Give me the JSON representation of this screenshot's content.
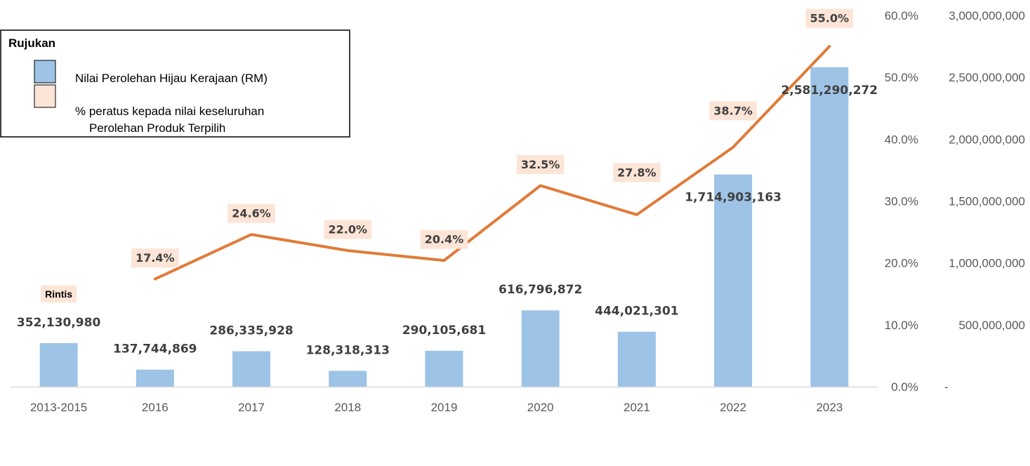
{
  "chart_data": {
    "type": "bar",
    "categories": [
      "2013-2015",
      "2016",
      "2017",
      "2018",
      "2019",
      "2020",
      "2021",
      "2022",
      "2023"
    ],
    "series": [
      {
        "name": "Nilai Perolehan Hijau Kerajaan (RM)",
        "type": "bar",
        "axis": "right",
        "color": "#9DC3E6",
        "values": [
          352130980,
          137744869,
          286335928,
          128318313,
          290105681,
          616796872,
          444021301,
          1714903163,
          2581290272
        ],
        "labels": [
          "352,130,980",
          "137,744,869",
          "286,335,928",
          "128,318,313",
          "290,105,681",
          "616,796,872",
          "444,021,301",
          "1,714,903,163",
          "2,581,290,272"
        ]
      },
      {
        "name": "% peratus kepada nilai keseluruhan Perolehan Produk Terpilih",
        "type": "line",
        "axis": "left",
        "color": "#E07B39",
        "values": [
          null,
          17.4,
          24.6,
          22.0,
          20.4,
          32.5,
          27.8,
          38.7,
          55.0
        ],
        "labels": [
          "",
          "17.4%",
          "24.6%",
          "22.0%",
          "20.4%",
          "32.5%",
          "27.8%",
          "38.7%",
          "55.0%"
        ]
      }
    ],
    "pct_axis": {
      "ylim": [
        0,
        60
      ],
      "ticks": [
        "0.0%",
        "10.0%",
        "20.0%",
        "30.0%",
        "40.0%",
        "50.0%",
        "60.0%"
      ]
    },
    "value_axis": {
      "ylim": [
        0,
        3000000000
      ],
      "ticks": [
        "-",
        "500,000,000",
        "1,000,000,000",
        "1,500,000,000",
        "2,000,000,000",
        "2,500,000,000",
        "3,000,000,000"
      ]
    },
    "annotation": {
      "text": "Rintis",
      "category": "2013-2015"
    },
    "legend": {
      "title": "Rujukan",
      "position": "top-left",
      "items": [
        {
          "line1": "Nilai Perolehan Hijau Kerajaan (RM)",
          "line2": "",
          "color": "#9DC3E6"
        },
        {
          "line1": "% peratus kepada nilai keseluruhan",
          "line2": "Perolehan Produk Terpilih",
          "color": "#FCE4D6"
        }
      ]
    },
    "label_bg_color": "#FCE4D6",
    "grid": false
  }
}
